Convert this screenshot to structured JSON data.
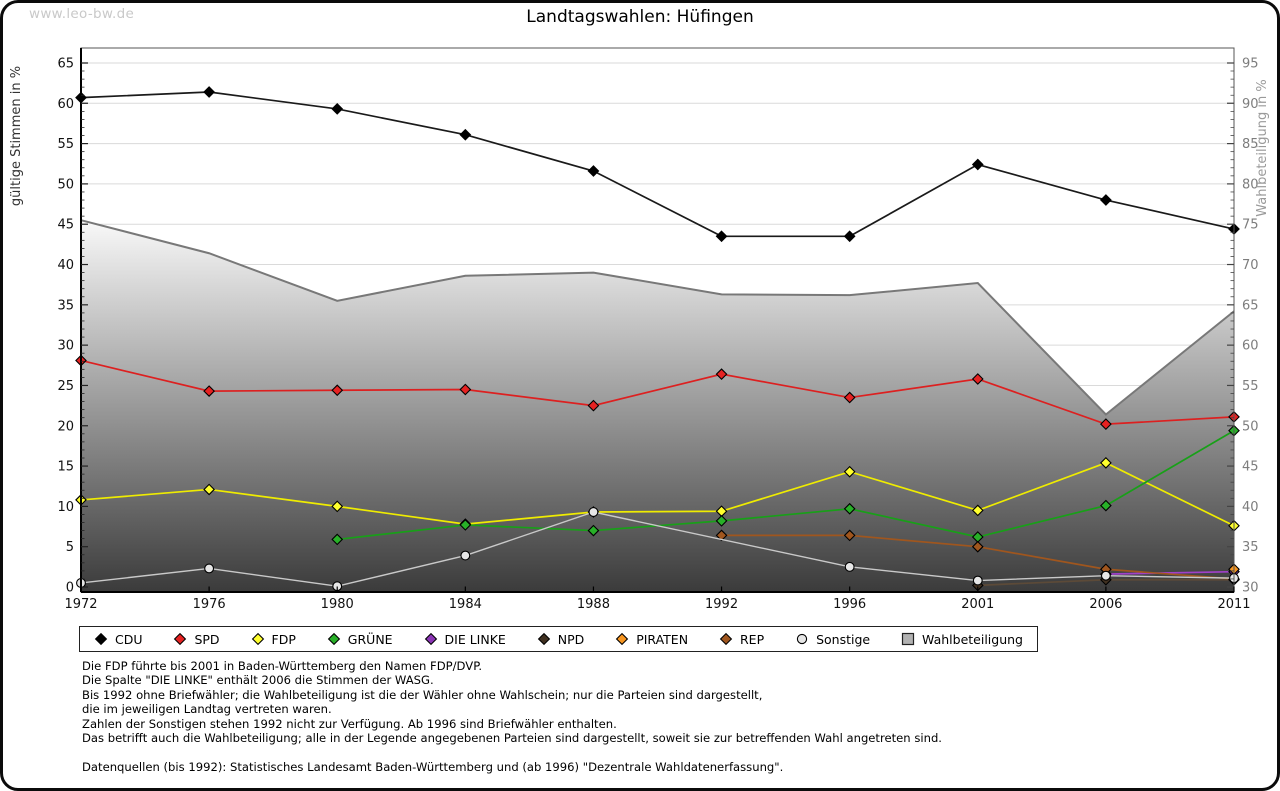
{
  "watermark": "www.leo-bw.de",
  "title": "Landtagswahlen: Hüfingen",
  "axes": {
    "left_label": "gültige Stimmen in %",
    "right_label": "Wahlbeteiligung in %",
    "left_min": 0,
    "left_max": 65,
    "left_step": 5,
    "right_min": 30,
    "right_max": 95,
    "right_step": 5,
    "grid": true
  },
  "chart_data": {
    "type": "line",
    "categories": [
      "1972",
      "1976",
      "1980",
      "1984",
      "1988",
      "1992",
      "1996",
      "2001",
      "2006",
      "2011"
    ],
    "xlabel": "",
    "ylabel_left": "gültige Stimmen in %",
    "ylabel_right": "Wahlbeteiligung in %",
    "ylim_left": [
      0,
      65
    ],
    "ylim_right": [
      30,
      95
    ],
    "legend_position": "bottom",
    "series": [
      {
        "name": "CDU",
        "marker": "diamond",
        "color": "#000000",
        "line": "#1a1a1a",
        "values": [
          60.7,
          61.4,
          59.3,
          56.1,
          51.6,
          43.5,
          43.5,
          52.4,
          48.0,
          44.4
        ]
      },
      {
        "name": "SPD",
        "marker": "diamond",
        "color": "#e62222",
        "line": "#dd2020",
        "values": [
          28.1,
          24.3,
          24.4,
          24.5,
          22.5,
          26.4,
          23.5,
          25.8,
          20.2,
          21.1
        ]
      },
      {
        "name": "FDP",
        "marker": "diamond",
        "color": "#ffff2e",
        "line": "#efec00",
        "values": [
          10.8,
          12.1,
          10.0,
          7.8,
          9.3,
          9.4,
          14.3,
          9.5,
          15.4,
          7.6
        ]
      },
      {
        "name": "GRÜNE",
        "marker": "diamond",
        "color": "#28b028",
        "line": "#18a018",
        "values": [
          null,
          null,
          5.9,
          7.7,
          7.0,
          8.2,
          9.7,
          6.2,
          10.1,
          19.4
        ]
      },
      {
        "name": "DIE LINKE",
        "marker": "diamond",
        "color": "#8b35b5",
        "line": "#a040c8",
        "values": [
          null,
          null,
          null,
          null,
          null,
          null,
          null,
          null,
          1.6,
          1.9
        ]
      },
      {
        "name": "NPD",
        "marker": "diamond",
        "color": "#403020",
        "line": "#5c4a38",
        "values": [
          null,
          null,
          null,
          null,
          null,
          null,
          null,
          0.2,
          0.9,
          0.9
        ]
      },
      {
        "name": "PIRATEN",
        "marker": "diamond",
        "color": "#f79621",
        "line": "#e5831a",
        "values": [
          null,
          null,
          null,
          null,
          null,
          null,
          null,
          null,
          null,
          2.2
        ]
      },
      {
        "name": "REP",
        "marker": "diamond",
        "color": "#a0561e",
        "line": "#a0561e",
        "values": [
          null,
          null,
          null,
          null,
          null,
          6.4,
          6.4,
          5.0,
          2.2,
          1.0
        ]
      },
      {
        "name": "Sonstige",
        "marker": "circle",
        "color": "#e6e6e6",
        "line": "#c9c9c9",
        "values": [
          0.5,
          2.3,
          0.1,
          3.9,
          9.3,
          null,
          2.5,
          0.8,
          1.4,
          1.1
        ]
      },
      {
        "name": "Wahlbeteiligung",
        "type": "area",
        "axis": "right",
        "marker": "square",
        "stroke": "#787878",
        "fill_top": "#ffffff",
        "fill_bottom": "#3b3b3b",
        "legend_fill": "#b2b2b2",
        "values": [
          75.5,
          71.4,
          65.5,
          68.6,
          69.0,
          66.3,
          66.2,
          67.7,
          51.4,
          64.2
        ]
      }
    ]
  },
  "footnotes": [
    "Die FDP führte bis 2001 in Baden-Württemberg den Namen FDP/DVP.",
    "Die Spalte \"DIE LINKE\" enthält 2006 die Stimmen der WASG.",
    "Bis 1992 ohne Briefwähler; die Wahlbeteiligung ist die der Wähler ohne Wahlschein; nur die Parteien sind dargestellt,",
    "die im jeweiligen Landtag vertreten waren.",
    "Zahlen der Sonstigen stehen 1992 nicht zur Verfügung. Ab 1996 sind Briefwähler enthalten.",
    "Das betrifft auch die Wahlbeteiligung; alle in der Legende angegebenen Parteien sind dargestellt, soweit sie zur betreffenden Wahl angetreten sind."
  ],
  "source": "Datenquellen (bis 1992): Statistisches Landesamt Baden-Württemberg und (ab 1996) \"Dezentrale Wahldatenerfassung\"."
}
